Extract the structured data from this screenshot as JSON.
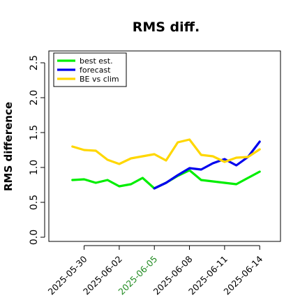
{
  "chart_data": {
    "type": "line",
    "title": "RMS diff.",
    "ylabel": "RMS difference",
    "xlabel": "",
    "ylim": [
      0,
      2.5
    ],
    "y_ticks": [
      "0.0",
      "0.5",
      "1.0",
      "1.5",
      "2.0",
      "2.5"
    ],
    "x_tick_labels": [
      {
        "label": "2025-05-30",
        "color": "#000000"
      },
      {
        "label": "2025-06-02",
        "color": "#000000"
      },
      {
        "label": "2025-06-05",
        "color": "#228B22"
      },
      {
        "label": "2025-06-08",
        "color": "#000000"
      },
      {
        "label": "2025-06-11",
        "color": "#000000"
      },
      {
        "label": "2025-06-14",
        "color": "#000000"
      }
    ],
    "x": [
      "2025-05-29",
      "2025-05-30",
      "2025-05-31",
      "2025-06-01",
      "2025-06-02",
      "2025-06-03",
      "2025-06-04",
      "2025-06-05",
      "2025-06-06",
      "2025-06-07",
      "2025-06-08",
      "2025-06-09",
      "2025-06-10",
      "2025-06-11",
      "2025-06-12",
      "2025-06-13",
      "2025-06-14"
    ],
    "xlim": [
      "2025-05-28",
      "2025-06-15"
    ],
    "series": [
      {
        "name": "best est.",
        "color": "#00ee00",
        "values": [
          0.82,
          0.83,
          0.78,
          0.82,
          0.73,
          0.76,
          0.85,
          0.7,
          0.78,
          0.88,
          0.96,
          0.82,
          0.8,
          0.78,
          0.76,
          0.85,
          0.94
        ]
      },
      {
        "name": "forecast",
        "color": "#0000ee",
        "values": [
          null,
          null,
          null,
          null,
          null,
          null,
          null,
          0.7,
          0.78,
          0.89,
          0.99,
          0.97,
          1.06,
          1.12,
          1.03,
          1.15,
          1.37
        ]
      },
      {
        "name": "BE vs clim",
        "color": "#ffd700",
        "values": [
          1.3,
          1.25,
          1.24,
          1.11,
          1.05,
          1.13,
          1.16,
          1.19,
          1.1,
          1.36,
          1.4,
          1.18,
          1.16,
          1.08,
          1.14,
          1.15,
          1.26
        ]
      }
    ],
    "legend_position": "top-left",
    "grid": false
  }
}
